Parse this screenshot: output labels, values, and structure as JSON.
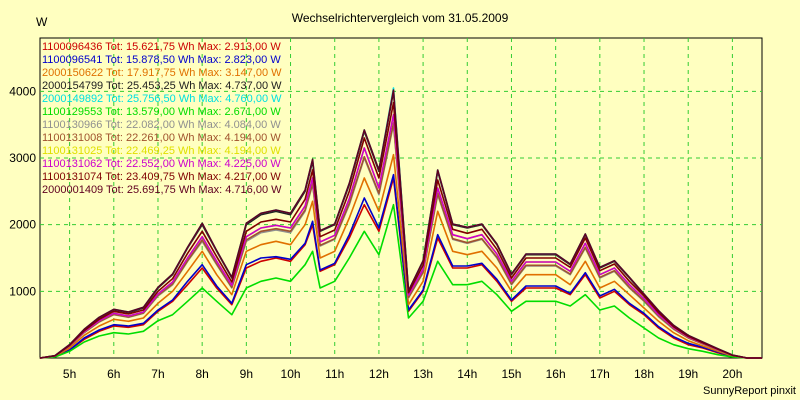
{
  "chart_data": {
    "type": "line",
    "title": "Wechselrichtervergleich vom 31.05.2009",
    "ylabel": "W",
    "xlabel": "",
    "footer": "SunnyReport pinxit",
    "xlim": [
      4.33,
      20.67
    ],
    "ylim": [
      0,
      4800
    ],
    "yticks": [
      1000,
      2000,
      3000,
      4000
    ],
    "xticks": [
      5,
      6,
      7,
      8,
      9,
      10,
      11,
      12,
      13,
      14,
      15,
      16,
      17,
      18,
      19,
      20
    ],
    "xtick_labels": [
      "5h",
      "6h",
      "7h",
      "8h",
      "9h",
      "10h",
      "11h",
      "12h",
      "13h",
      "14h",
      "15h",
      "16h",
      "17h",
      "18h",
      "19h",
      "20h"
    ],
    "grid": true,
    "legend_position": "top-left",
    "x": [
      4.33,
      4.67,
      5.0,
      5.33,
      5.67,
      6.0,
      6.33,
      6.67,
      7.0,
      7.33,
      7.67,
      8.0,
      8.33,
      8.67,
      9.0,
      9.33,
      9.67,
      10.0,
      10.33,
      10.5,
      10.67,
      11.0,
      11.33,
      11.67,
      12.0,
      12.33,
      12.67,
      13.0,
      13.33,
      13.67,
      14.0,
      14.33,
      14.67,
      15.0,
      15.33,
      15.67,
      16.0,
      16.33,
      16.67,
      17.0,
      17.33,
      17.67,
      18.0,
      18.33,
      18.67,
      19.0,
      19.33,
      19.67,
      20.0,
      20.33,
      20.67
    ],
    "series": [
      {
        "name": "1100096436 Tot: 15.621,75 Wh Max: 2.913,00 W",
        "color": "#cc0000",
        "values": [
          0,
          20,
          120,
          280,
          400,
          480,
          460,
          500,
          700,
          850,
          1100,
          1350,
          1050,
          800,
          1350,
          1450,
          1500,
          1450,
          1700,
          2000,
          1300,
          1400,
          1800,
          2300,
          1900,
          2700,
          700,
          1000,
          1800,
          1350,
          1350,
          1400,
          1150,
          850,
          1050,
          1050,
          1050,
          950,
          1250,
          900,
          1000,
          800,
          650,
          450,
          300,
          200,
          150,
          80,
          20,
          0,
          0
        ]
      },
      {
        "name": "1100096541 Tot: 15.878,50 Wh Max: 2.823,00 W",
        "color": "#0000cc",
        "values": [
          0,
          20,
          120,
          300,
          420,
          500,
          480,
          520,
          720,
          870,
          1150,
          1400,
          1080,
          820,
          1400,
          1500,
          1520,
          1480,
          1720,
          2050,
          1320,
          1420,
          1850,
          2400,
          1950,
          2750,
          720,
          1020,
          1850,
          1380,
          1380,
          1420,
          1180,
          870,
          1080,
          1080,
          1080,
          970,
          1280,
          930,
          1030,
          820,
          670,
          470,
          320,
          220,
          160,
          90,
          25,
          0,
          0
        ]
      },
      {
        "name": "2000150622 Tot: 17.917,75 Wh Max: 3.147,00 W",
        "color": "#e07000",
        "values": [
          0,
          25,
          150,
          340,
          480,
          580,
          550,
          600,
          820,
          1000,
          1300,
          1600,
          1250,
          950,
          1600,
          1700,
          1750,
          1700,
          2000,
          2350,
          1500,
          1600,
          2100,
          2700,
          2200,
          3050,
          800,
          1150,
          2200,
          1600,
          1550,
          1600,
          1350,
          1000,
          1250,
          1250,
          1250,
          1100,
          1450,
          1050,
          1150,
          950,
          750,
          550,
          380,
          260,
          180,
          100,
          30,
          0,
          0
        ]
      },
      {
        "name": "2000154799 Tot: 25.453,25 Wh Max: 4.737,00 W",
        "color": "#202020",
        "values": [
          0,
          35,
          200,
          420,
          600,
          720,
          680,
          750,
          1050,
          1250,
          1650,
          2000,
          1600,
          1200,
          2000,
          2150,
          2200,
          2150,
          2500,
          2950,
          1900,
          2000,
          2600,
          3400,
          2800,
          4000,
          1000,
          1450,
          2800,
          2000,
          1950,
          2000,
          1700,
          1250,
          1550,
          1550,
          1550,
          1400,
          1850,
          1350,
          1450,
          1200,
          950,
          700,
          480,
          330,
          230,
          130,
          40,
          0,
          0
        ]
      },
      {
        "name": "2000149892 Tot: 25.756,50 Wh Max: 4.760,00 W",
        "color": "#00e0e0",
        "values": [
          0,
          35,
          200,
          430,
          610,
          730,
          690,
          760,
          1060,
          1260,
          1660,
          2020,
          1610,
          1210,
          2020,
          2170,
          2220,
          2170,
          2520,
          2980,
          1910,
          2010,
          2620,
          3420,
          2820,
          4050,
          1010,
          1460,
          2820,
          2010,
          1960,
          2010,
          1710,
          1260,
          1560,
          1560,
          1560,
          1410,
          1860,
          1360,
          1460,
          1210,
          960,
          710,
          490,
          340,
          240,
          140,
          45,
          0,
          0
        ]
      },
      {
        "name": "1100129553 Tot: 13.579,00 Wh Max: 2.671,00 W",
        "color": "#00dd00",
        "values": [
          0,
          15,
          100,
          240,
          330,
          380,
          360,
          400,
          560,
          650,
          850,
          1050,
          850,
          650,
          1050,
          1150,
          1200,
          1150,
          1400,
          1600,
          1050,
          1150,
          1500,
          1900,
          1550,
          2300,
          600,
          850,
          1450,
          1100,
          1100,
          1150,
          950,
          700,
          850,
          850,
          850,
          780,
          950,
          720,
          780,
          600,
          450,
          300,
          200,
          140,
          100,
          50,
          15,
          0,
          0
        ]
      },
      {
        "name": "1100130966 Tot: 22.082,00 Wh Max: 4.084,00 W",
        "color": "#909090",
        "values": [
          0,
          30,
          180,
          380,
          540,
          650,
          610,
          670,
          930,
          1100,
          1450,
          1750,
          1400,
          1050,
          1750,
          1880,
          1920,
          1880,
          2200,
          2600,
          1680,
          1780,
          2300,
          3000,
          2450,
          3500,
          900,
          1280,
          2450,
          1780,
          1720,
          1780,
          1500,
          1100,
          1380,
          1380,
          1380,
          1250,
          1650,
          1200,
          1300,
          1050,
          850,
          620,
          430,
          300,
          210,
          120,
          38,
          0,
          0
        ]
      },
      {
        "name": "1100131008 Tot: 22.261,00 Wh Max: 4.194,00 W",
        "color": "#a0522d",
        "values": [
          0,
          30,
          180,
          385,
          545,
          655,
          615,
          675,
          940,
          1110,
          1460,
          1770,
          1410,
          1060,
          1770,
          1900,
          1940,
          1900,
          2220,
          2620,
          1690,
          1790,
          2320,
          3020,
          2470,
          3530,
          910,
          1290,
          2470,
          1790,
          1730,
          1790,
          1510,
          1110,
          1390,
          1390,
          1390,
          1260,
          1660,
          1210,
          1310,
          1060,
          860,
          630,
          440,
          305,
          215,
          125,
          39,
          0,
          0
        ]
      },
      {
        "name": "1100131025 Tot: 22.469,25 Wh Max: 4.194,00 W",
        "color": "#e0e000",
        "values": [
          0,
          32,
          185,
          395,
          560,
          670,
          630,
          690,
          960,
          1140,
          1500,
          1820,
          1450,
          1090,
          1820,
          1950,
          1990,
          1950,
          2280,
          2700,
          1740,
          1840,
          2390,
          3150,
          2550,
          3650,
          940,
          1330,
          2550,
          1850,
          1790,
          1850,
          1560,
          1150,
          1440,
          1440,
          1440,
          1300,
          1720,
          1250,
          1350,
          1100,
          890,
          650,
          455,
          315,
          222,
          128,
          40,
          0,
          0
        ]
      },
      {
        "name": "1100131062 Tot: 22.552,00 Wh Max: 4.225,00 W",
        "color": "#cc00cc",
        "values": [
          0,
          32,
          185,
          395,
          560,
          670,
          630,
          690,
          960,
          1140,
          1500,
          1820,
          1450,
          1090,
          1820,
          1950,
          1990,
          1950,
          2280,
          2700,
          1740,
          1840,
          2390,
          3150,
          2550,
          3650,
          940,
          1330,
          2550,
          1850,
          1790,
          1850,
          1560,
          1150,
          1440,
          1440,
          1440,
          1300,
          1720,
          1250,
          1350,
          1100,
          890,
          650,
          455,
          315,
          222,
          128,
          40,
          0,
          0
        ]
      },
      {
        "name": "1100131074 Tot: 23.409,75 Wh Max: 4.217,00 W",
        "color": "#800000",
        "values": [
          0,
          33,
          190,
          410,
          580,
          700,
          660,
          720,
          1000,
          1190,
          1570,
          1900,
          1520,
          1140,
          1900,
          2040,
          2080,
          2040,
          2380,
          2820,
          1820,
          1920,
          2500,
          3300,
          2700,
          3830,
          980,
          1390,
          2670,
          1930,
          1870,
          1930,
          1630,
          1200,
          1500,
          1500,
          1500,
          1360,
          1800,
          1310,
          1410,
          1150,
          930,
          680,
          470,
          325,
          228,
          132,
          41,
          0,
          0
        ]
      },
      {
        "name": "2000001409 Tot: 25.691,75 Wh Max: 4.716,00 W",
        "color": "#600020",
        "values": [
          0,
          35,
          200,
          430,
          610,
          730,
          690,
          760,
          1060,
          1260,
          1660,
          2020,
          1610,
          1210,
          2020,
          2170,
          2220,
          2170,
          2520,
          2980,
          1910,
          2010,
          2620,
          3420,
          2820,
          4020,
          1010,
          1460,
          2820,
          2010,
          1960,
          2010,
          1710,
          1260,
          1560,
          1560,
          1560,
          1410,
          1860,
          1360,
          1460,
          1210,
          960,
          710,
          490,
          340,
          240,
          140,
          45,
          0,
          0
        ]
      }
    ]
  }
}
